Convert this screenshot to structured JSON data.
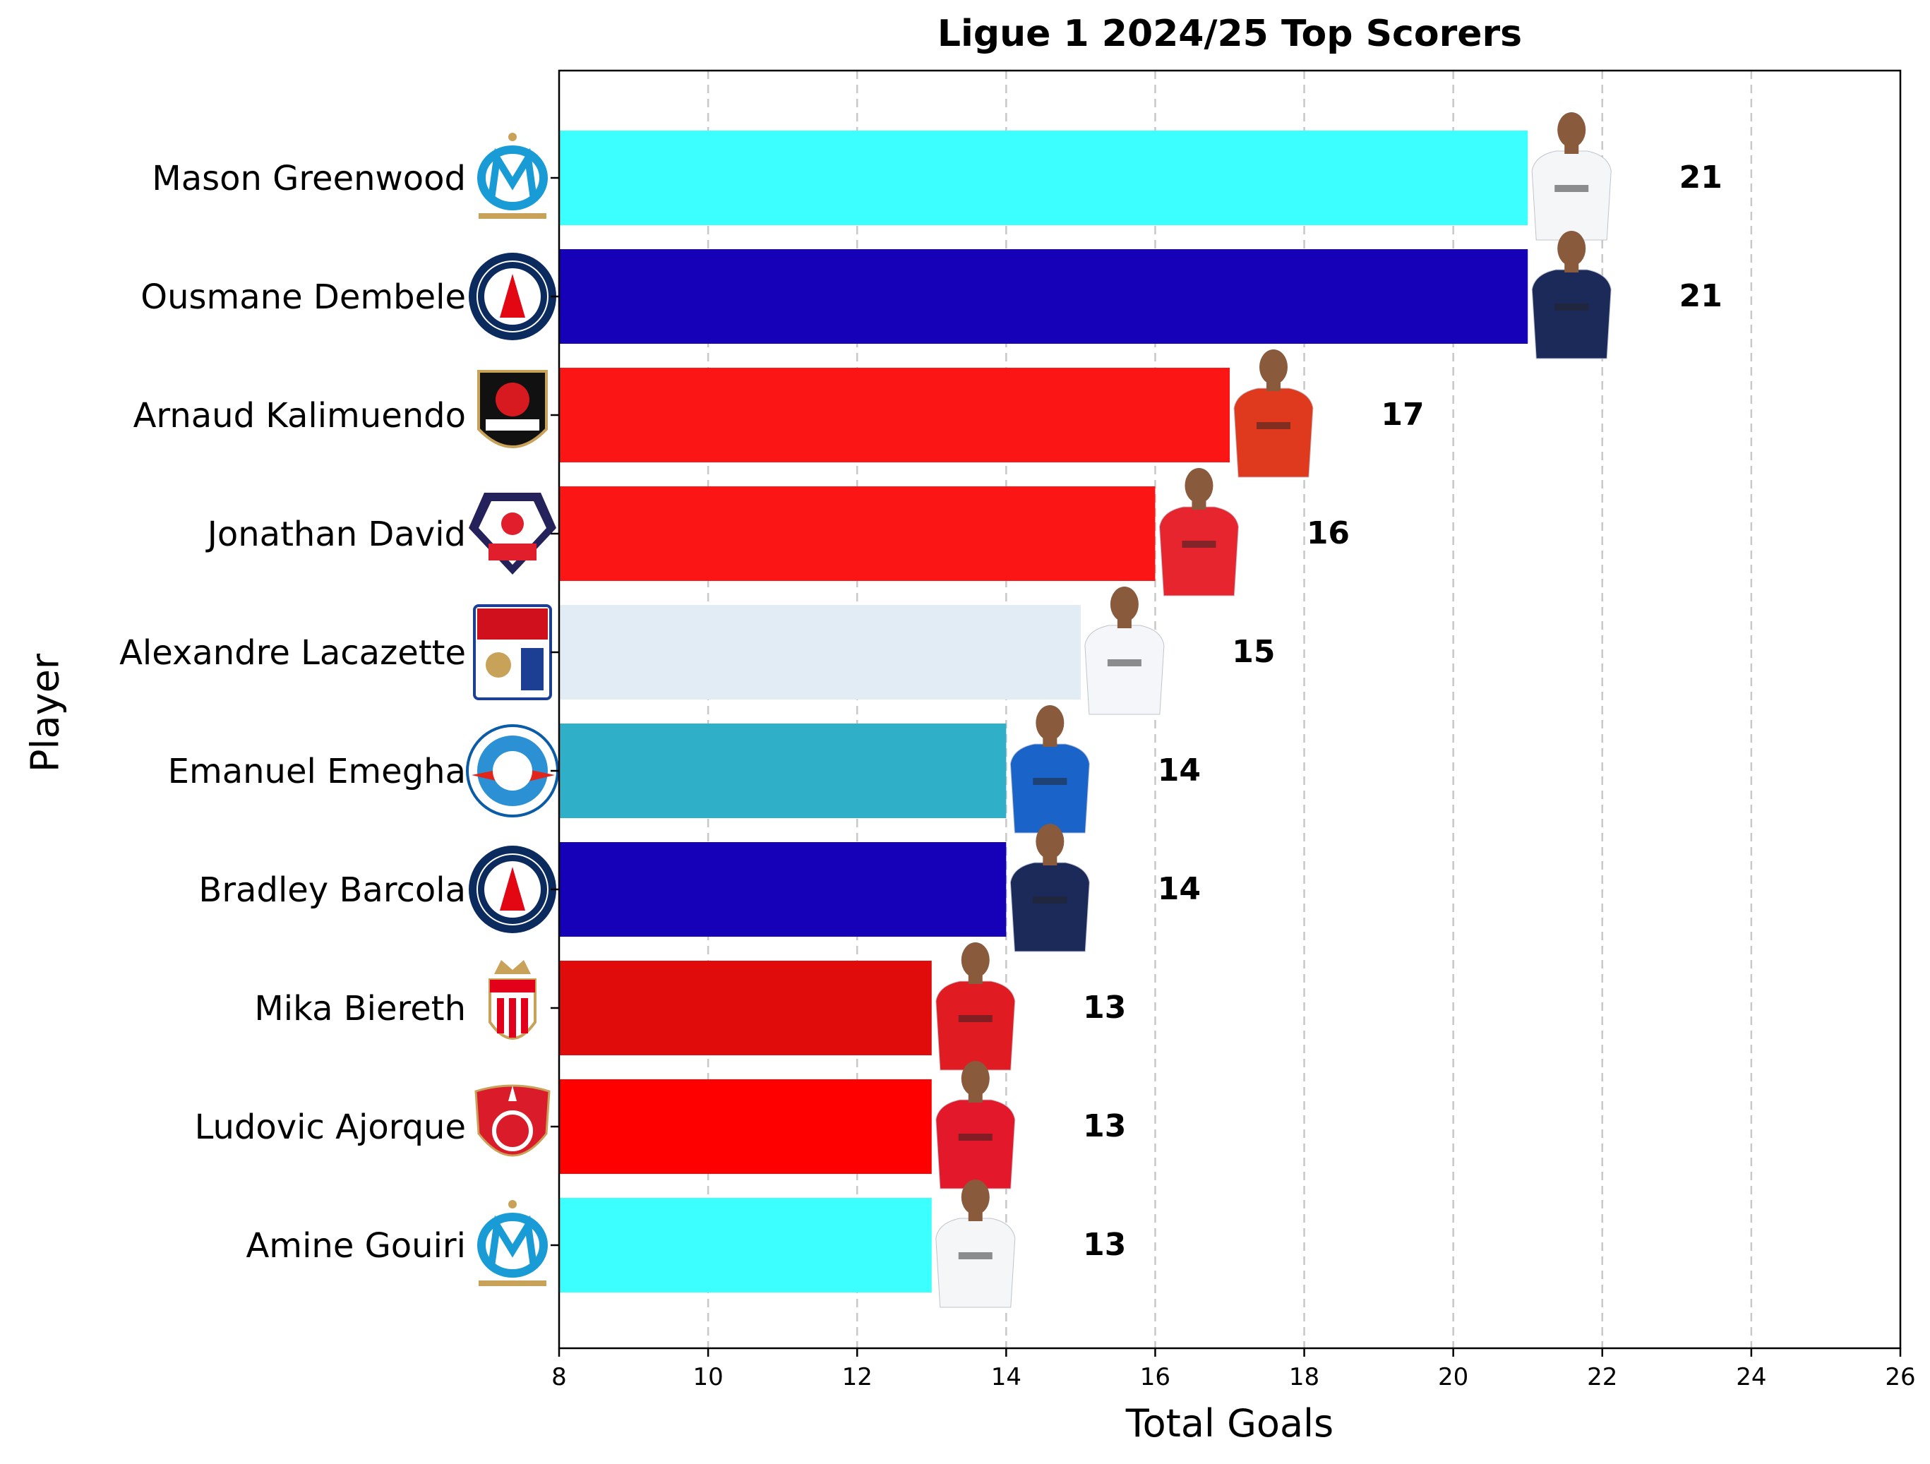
{
  "chart_data": {
    "type": "bar",
    "orientation": "horizontal",
    "title": "Ligue 1 2024/25 Top Scorers",
    "xlabel": "Total Goals",
    "ylabel": "Player",
    "xlim": [
      8,
      26
    ],
    "xticks": [
      8,
      10,
      12,
      14,
      16,
      18,
      20,
      22,
      24,
      26
    ],
    "grid": "x dashed",
    "categories": [
      "Mason Greenwood",
      "Ousmane Dembele",
      "Arnaud Kalimuendo",
      "Jonathan David",
      "Alexandre Lacazette",
      "Emanuel Emegha",
      "Bradley Barcola",
      "Mika Biereth",
      "Ludovic Ajorque",
      "Amine Gouiri"
    ],
    "values": [
      21,
      21,
      17,
      16,
      15,
      14,
      14,
      13,
      13,
      13
    ],
    "data_labels": [
      "21",
      "21",
      "17",
      "16",
      "15",
      "14",
      "14",
      "13",
      "13",
      "13"
    ],
    "bar_colors": [
      "#3cffff",
      "#1600b8",
      "#fc1515",
      "#fc1515",
      "#e2ecf5",
      "#2fb0c8",
      "#1600b8",
      "#e00c0c",
      "#ff0000",
      "#3cffff"
    ],
    "clubs": [
      "Olympique de Marseille",
      "Paris Saint-Germain",
      "Stade Rennais",
      "LOSC Lille",
      "Olympique Lyonnais",
      "RC Strasbourg Alsace",
      "Paris Saint-Germain",
      "AS Monaco",
      "Stade Brestois 29",
      "Olympique de Marseille"
    ]
  }
}
